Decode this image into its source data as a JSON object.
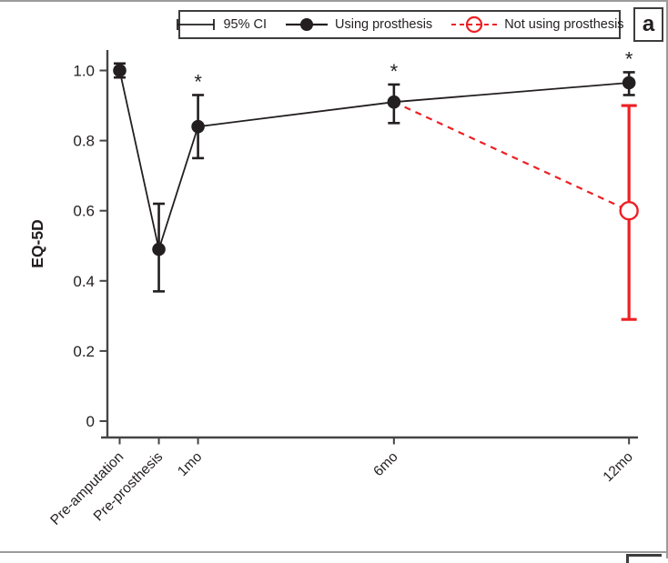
{
  "figure": {
    "panel_label": "a",
    "legend": {
      "ci_label": "95% CI",
      "using_label": "Using prosthesis",
      "not_using_label": "Not using prosthesis"
    },
    "colors": {
      "black_series": "#231f20",
      "red_series": "#ed2024",
      "axis": "#454545",
      "text": "#231f20",
      "border_gray": "#9b9b9b",
      "box_border": "#3d3d3d"
    }
  },
  "chart_data": {
    "type": "line",
    "title": "",
    "ylabel": "EQ-5D",
    "xlabel": "",
    "categories": [
      "Pre-amputation",
      "Pre-prosthesis",
      "1mo",
      "6mo",
      "12mo"
    ],
    "x_time_units": [
      0,
      1,
      2,
      7,
      13
    ],
    "ytick_labels": [
      "1.0",
      "0.8",
      "0.6",
      "0.4",
      "0.2",
      "0"
    ],
    "ytick_values": [
      1.0,
      0.8,
      0.6,
      0.4,
      0.2,
      0
    ],
    "ylim": [
      0,
      1.05
    ],
    "grid": false,
    "legend_position": "top",
    "error_bar_label": "95% CI",
    "series": [
      {
        "name": "Using prosthesis",
        "style": "solid-line-filled-circle",
        "color": "#231f20",
        "x_indices": [
          0,
          1,
          2,
          3,
          4
        ],
        "values": [
          1.0,
          0.49,
          0.84,
          0.91,
          0.965
        ],
        "ci_low": [
          0.98,
          0.37,
          0.75,
          0.85,
          0.93
        ],
        "ci_high": [
          1.02,
          0.62,
          0.93,
          0.96,
          0.995
        ],
        "marker_indices": [
          0,
          1,
          2,
          3,
          4
        ]
      },
      {
        "name": "Not using prosthesis",
        "style": "dashed-line-open-circle",
        "color": "#ed2024",
        "x_indices": [
          3,
          4
        ],
        "values": [
          0.91,
          0.6
        ],
        "ci_low": [
          null,
          0.29
        ],
        "ci_high": [
          null,
          0.9
        ],
        "marker_indices": [
          1
        ]
      }
    ],
    "significance_marks": {
      "symbol": "*",
      "x_indices": [
        2,
        3,
        4
      ]
    }
  }
}
